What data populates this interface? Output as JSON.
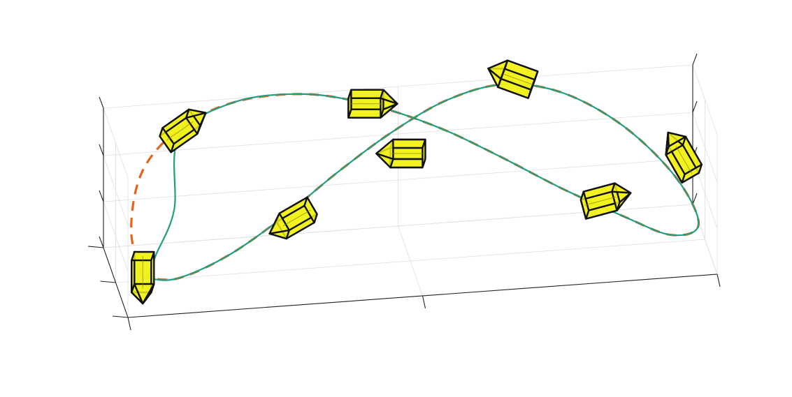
{
  "chart_data": {
    "type": "line",
    "title": "",
    "xlabel": "",
    "ylabel": "",
    "zlabel": "",
    "projection": "3d",
    "grid": true,
    "tick_labels_visible": false,
    "series": [
      {
        "role": "reference",
        "style": "dashed",
        "points": [
          [
            0.03,
            0.17,
            0.2
          ],
          [
            0.02,
            0.35,
            0.45
          ],
          [
            0.05,
            0.62,
            0.72
          ],
          [
            0.12,
            0.82,
            0.9
          ],
          [
            0.22,
            0.95,
            1.0
          ],
          [
            0.34,
            0.99,
            1.0
          ],
          [
            0.45,
            0.93,
            0.92
          ],
          [
            0.56,
            0.82,
            0.78
          ],
          [
            0.66,
            0.7,
            0.6
          ],
          [
            0.76,
            0.58,
            0.4
          ],
          [
            0.86,
            0.48,
            0.22
          ],
          [
            0.94,
            0.44,
            0.08
          ],
          [
            0.99,
            0.52,
            0.1
          ],
          [
            0.96,
            0.7,
            0.35
          ],
          [
            0.88,
            0.88,
            0.65
          ],
          [
            0.78,
            0.97,
            0.88
          ],
          [
            0.68,
            0.98,
            0.97
          ],
          [
            0.58,
            0.9,
            0.93
          ],
          [
            0.48,
            0.76,
            0.8
          ],
          [
            0.38,
            0.6,
            0.62
          ],
          [
            0.28,
            0.42,
            0.42
          ],
          [
            0.18,
            0.27,
            0.25
          ],
          [
            0.09,
            0.18,
            0.16
          ],
          [
            0.03,
            0.17,
            0.2
          ]
        ]
      },
      {
        "role": "estimate",
        "style": "solid",
        "points": [
          [
            0.04,
            0.18,
            0.18
          ],
          [
            0.06,
            0.3,
            0.28
          ],
          [
            0.1,
            0.52,
            0.48
          ],
          [
            0.12,
            0.8,
            0.86
          ],
          [
            0.22,
            0.95,
            1.0
          ],
          [
            0.34,
            0.99,
            1.0
          ],
          [
            0.45,
            0.93,
            0.92
          ],
          [
            0.56,
            0.82,
            0.78
          ],
          [
            0.66,
            0.7,
            0.6
          ],
          [
            0.76,
            0.58,
            0.4
          ],
          [
            0.86,
            0.48,
            0.22
          ],
          [
            0.94,
            0.44,
            0.08
          ],
          [
            0.99,
            0.52,
            0.1
          ],
          [
            0.96,
            0.7,
            0.35
          ],
          [
            0.88,
            0.88,
            0.65
          ],
          [
            0.78,
            0.97,
            0.88
          ],
          [
            0.68,
            0.98,
            0.97
          ],
          [
            0.58,
            0.9,
            0.93
          ],
          [
            0.48,
            0.76,
            0.8
          ],
          [
            0.38,
            0.6,
            0.62
          ],
          [
            0.28,
            0.42,
            0.42
          ],
          [
            0.18,
            0.27,
            0.25
          ],
          [
            0.09,
            0.18,
            0.16
          ],
          [
            0.04,
            0.18,
            0.18
          ]
        ]
      }
    ],
    "poses": [
      {
        "name": "pose-1",
        "position": [
          0.03,
          0.17,
          0.2
        ],
        "heading_deg": -90
      },
      {
        "name": "pose-2",
        "position": [
          0.12,
          0.82,
          0.86
        ],
        "heading_deg": 35
      },
      {
        "name": "pose-3",
        "position": [
          0.3,
          0.38,
          0.4
        ],
        "heading_deg": -150
      },
      {
        "name": "pose-4",
        "position": [
          0.44,
          0.93,
          0.9
        ],
        "heading_deg": 0
      },
      {
        "name": "pose-5",
        "position": [
          0.5,
          0.66,
          0.66
        ],
        "heading_deg": 180
      },
      {
        "name": "pose-6",
        "position": [
          0.7,
          0.98,
          0.97
        ],
        "heading_deg": 160
      },
      {
        "name": "pose-7",
        "position": [
          0.82,
          0.5,
          0.3
        ],
        "heading_deg": 15
      },
      {
        "name": "pose-8",
        "position": [
          0.97,
          0.7,
          0.45
        ],
        "heading_deg": 120
      }
    ]
  },
  "colors": {
    "reference": "#e8641a",
    "estimate": "#1f9e80",
    "body_fill": "#f2f21a",
    "body_edge": "#111111",
    "grid": "#dedede",
    "axis": "#222222"
  }
}
